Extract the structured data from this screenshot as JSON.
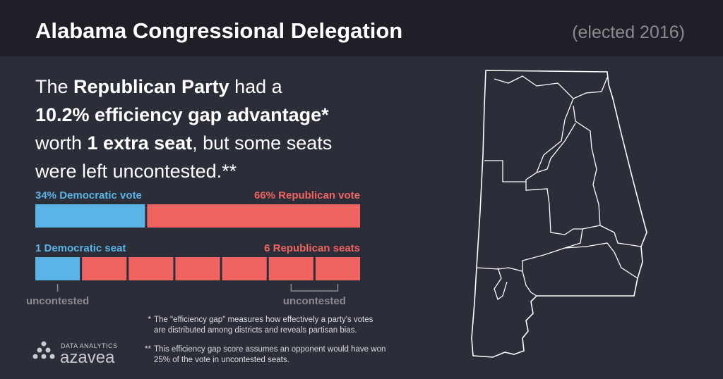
{
  "header": {
    "title": "Alabama Congressional Delegation",
    "subtitle": "(elected 2016)"
  },
  "headline": [
    [
      {
        "text": "The ",
        "bold": false
      },
      {
        "text": "Republican Party",
        "bold": true
      },
      {
        "text": " had a",
        "bold": false
      }
    ],
    [
      {
        "text": "10.2% efficiency gap advantage*",
        "bold": true
      }
    ],
    [
      {
        "text": "worth ",
        "bold": false
      },
      {
        "text": "1 extra seat",
        "bold": true
      },
      {
        "text": ", but some seats",
        "bold": false
      }
    ],
    [
      {
        "text": "were left uncontested.**",
        "bold": false
      }
    ]
  ],
  "vote_bar": [
    {
      "label": "34% Democratic vote",
      "value": 34,
      "color": "#5ab4e5"
    },
    {
      "label": "66% Republican vote",
      "value": 66,
      "color": "#ef6461"
    }
  ],
  "seat_bar": [
    {
      "label": "1 Democratic seat",
      "value": 1,
      "color": "#5ab4e5"
    },
    {
      "label": "6 Republican seats",
      "value": 6,
      "color": "#ef6461"
    }
  ],
  "uncontested": [
    "uncontested",
    "uncontested"
  ],
  "footnotes": [
    {
      "mark": "*",
      "lines": [
        "The \"efficiency gap\" measures how effectively a party's votes",
        "are distributed among districts and reveals partisan bias."
      ]
    },
    {
      "mark": "**",
      "lines": [
        "This efficiency gap score assumes an opponent would have won",
        "25% of the vote in uncontested seats."
      ]
    }
  ],
  "logo": {
    "tagline": "DATA ANALYTICS",
    "name": "azavea"
  }
}
